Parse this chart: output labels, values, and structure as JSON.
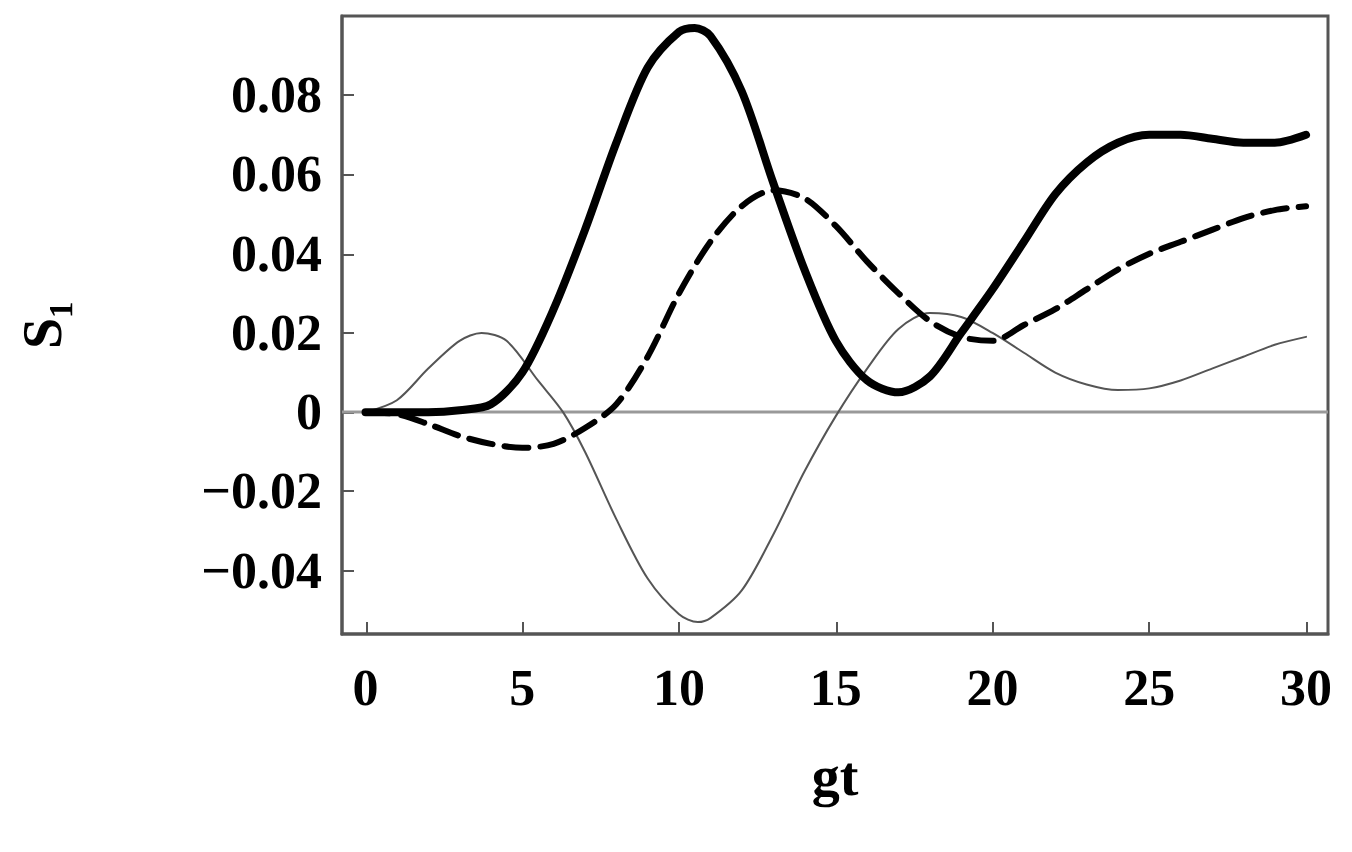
{
  "chart_data": {
    "type": "line",
    "xlabel": "gt",
    "ylabel": "S₁",
    "xlim": [
      -0.75,
      30.7
    ],
    "ylim": [
      -0.056,
      0.1
    ],
    "xticks": [
      0,
      5,
      10,
      15,
      20,
      25,
      30
    ],
    "yticks": [
      {
        "value": -0.04,
        "label": "−0.04"
      },
      {
        "value": -0.02,
        "label": "−0.02"
      },
      0,
      0.02,
      0.04,
      0.06,
      0.08
    ],
    "grid": false,
    "marker": "none",
    "ref_lines": [
      {
        "axis": "y",
        "value": 0,
        "color": "#999999"
      }
    ],
    "series": [
      {
        "color": "#000000",
        "line_style": "solid",
        "x": [
          0,
          2,
          3,
          4,
          5,
          6,
          7,
          8,
          9,
          10,
          10.5,
          11,
          12,
          13,
          14,
          15,
          16,
          17,
          18,
          19,
          20,
          21,
          22,
          23,
          24,
          25,
          26,
          27,
          28,
          29,
          30
        ],
        "values": [
          0,
          0,
          0.0005,
          0.002,
          0.01,
          0.026,
          0.046,
          0.068,
          0.087,
          0.096,
          0.097,
          0.095,
          0.081,
          0.058,
          0.036,
          0.018,
          0.008,
          0.005,
          0.009,
          0.02,
          0.031,
          0.043,
          0.055,
          0.063,
          0.068,
          0.07,
          0.07,
          0.069,
          0.068,
          0.068,
          0.07
        ]
      },
      {
        "color": "#000000",
        "line_style": "dashed",
        "x": [
          0,
          1,
          2,
          3,
          4,
          5,
          6,
          7,
          8,
          9,
          10,
          11,
          12,
          13,
          14,
          15,
          16,
          17,
          18,
          19,
          20,
          21,
          22,
          23,
          24,
          25,
          26,
          27,
          28,
          29,
          30
        ],
        "values": [
          0,
          -0.0005,
          -0.003,
          -0.006,
          -0.008,
          -0.009,
          -0.008,
          -0.004,
          0.002,
          0.014,
          0.03,
          0.043,
          0.052,
          0.056,
          0.054,
          0.047,
          0.038,
          0.03,
          0.023,
          0.019,
          0.018,
          0.022,
          0.026,
          0.031,
          0.036,
          0.04,
          0.043,
          0.046,
          0.049,
          0.051,
          0.052
        ]
      },
      {
        "color": "#555555",
        "line_style": "solid",
        "x": [
          0,
          1,
          2,
          3,
          3.7,
          4.5,
          5.5,
          6.3,
          7,
          8,
          9,
          10,
          10.6,
          11,
          12,
          13,
          14,
          15,
          16,
          17,
          18,
          19,
          20,
          21,
          22,
          23,
          24,
          25,
          26,
          27,
          28,
          29,
          30
        ],
        "values": [
          0,
          0.003,
          0.011,
          0.018,
          0.02,
          0.018,
          0.008,
          0,
          -0.01,
          -0.027,
          -0.042,
          -0.051,
          -0.053,
          -0.052,
          -0.045,
          -0.031,
          -0.015,
          -0.001,
          0.011,
          0.021,
          0.025,
          0.024,
          0.02,
          0.015,
          0.01,
          0.007,
          0.0056,
          0.006,
          0.008,
          0.011,
          0.014,
          0.017,
          0.019
        ]
      }
    ]
  }
}
